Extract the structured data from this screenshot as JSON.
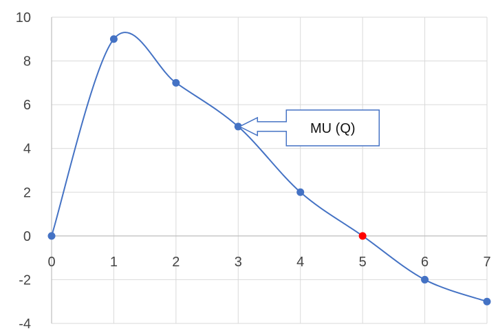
{
  "chart_data": {
    "type": "line",
    "x": [
      0,
      1,
      2,
      3,
      4,
      5,
      6,
      7
    ],
    "series": [
      {
        "values": [
          0,
          9,
          7,
          5,
          2,
          0,
          -2,
          -3
        ],
        "color": "#4472C4",
        "highlight_point": {
          "x": 5,
          "y": 0,
          "color": "#FF0000"
        }
      }
    ],
    "xlim": [
      0,
      7
    ],
    "ylim": [
      -4,
      10
    ],
    "x_ticks": [
      "0",
      "1",
      "2",
      "3",
      "4",
      "5",
      "6",
      "7"
    ],
    "y_ticks": [
      "10",
      "8",
      "6",
      "4",
      "2",
      "0",
      "-2",
      "-4"
    ],
    "grid": true,
    "annotation": {
      "text": "MU (Q)",
      "points_to": {
        "x": 3,
        "y": 5
      }
    }
  }
}
